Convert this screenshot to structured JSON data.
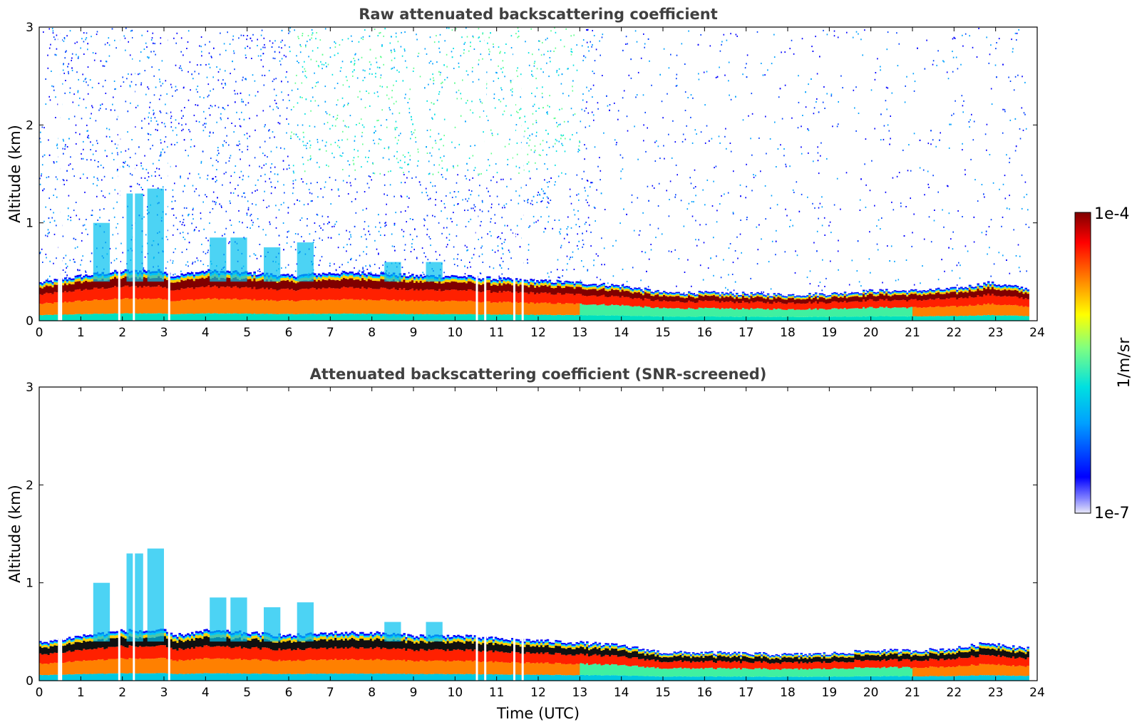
{
  "chart_data": [
    {
      "type": "heatmap",
      "title": "Raw attenuated backscattering coefficient",
      "xlabel": "",
      "ylabel": "Altitude (km)",
      "xlim": [
        0,
        24
      ],
      "ylim": [
        0,
        3
      ],
      "xticks": [
        "0",
        "1",
        "2",
        "3",
        "4",
        "5",
        "6",
        "7",
        "8",
        "9",
        "10",
        "11",
        "12",
        "13",
        "14",
        "15",
        "16",
        "17",
        "18",
        "19",
        "20",
        "21",
        "22",
        "23",
        "24"
      ],
      "yticks": [
        "0",
        "1",
        "2",
        "3"
      ],
      "screened": false,
      "boundary_layer_top_km": [
        [
          0,
          0.38
        ],
        [
          1,
          0.45
        ],
        [
          2,
          0.5
        ],
        [
          3,
          0.5
        ],
        [
          3.2,
          0.45
        ],
        [
          4,
          0.5
        ],
        [
          5,
          0.48
        ],
        [
          6,
          0.45
        ],
        [
          7,
          0.48
        ],
        [
          8,
          0.48
        ],
        [
          9,
          0.45
        ],
        [
          10,
          0.45
        ],
        [
          11,
          0.42
        ],
        [
          12,
          0.4
        ],
        [
          13,
          0.38
        ],
        [
          14,
          0.35
        ],
        [
          15,
          0.28
        ],
        [
          16,
          0.28
        ],
        [
          17,
          0.27
        ],
        [
          18,
          0.26
        ],
        [
          19,
          0.27
        ],
        [
          20,
          0.3
        ],
        [
          21,
          0.3
        ],
        [
          22,
          0.32
        ],
        [
          22.8,
          0.38
        ],
        [
          23.8,
          0.32
        ]
      ]
    },
    {
      "type": "heatmap",
      "title": "Attenuated backscattering coefficient (SNR-screened)",
      "xlabel": "Time (UTC)",
      "ylabel": "Altitude (km)",
      "xlim": [
        0,
        24
      ],
      "ylim": [
        0,
        3
      ],
      "xticks": [
        "0",
        "1",
        "2",
        "3",
        "4",
        "5",
        "6",
        "7",
        "8",
        "9",
        "10",
        "11",
        "12",
        "13",
        "14",
        "15",
        "16",
        "17",
        "18",
        "19",
        "20",
        "21",
        "22",
        "23",
        "24"
      ],
      "yticks": [
        "0",
        "1",
        "2",
        "3"
      ],
      "screened": true,
      "boundary_layer_top_km": [
        [
          0,
          0.38
        ],
        [
          1,
          0.45
        ],
        [
          2,
          0.5
        ],
        [
          3,
          0.5
        ],
        [
          3.2,
          0.45
        ],
        [
          4,
          0.5
        ],
        [
          5,
          0.48
        ],
        [
          6,
          0.45
        ],
        [
          7,
          0.48
        ],
        [
          8,
          0.48
        ],
        [
          9,
          0.45
        ],
        [
          10,
          0.45
        ],
        [
          11,
          0.42
        ],
        [
          12,
          0.4
        ],
        [
          13,
          0.38
        ],
        [
          14,
          0.35
        ],
        [
          15,
          0.28
        ],
        [
          16,
          0.28
        ],
        [
          17,
          0.27
        ],
        [
          18,
          0.26
        ],
        [
          19,
          0.27
        ],
        [
          20,
          0.3
        ],
        [
          21,
          0.3
        ],
        [
          22,
          0.32
        ],
        [
          22.8,
          0.38
        ],
        [
          23.8,
          0.32
        ]
      ]
    }
  ],
  "colorbar": {
    "label": "1/m/sr",
    "max_label": "1e-4",
    "min_label": "1e-7",
    "colormap": "jet",
    "scale": "log",
    "colors": [
      "#e8e8f8",
      "#0000ff",
      "#00a0ff",
      "#00e0e0",
      "#80ff80",
      "#ffff00",
      "#ff8000",
      "#ff0000",
      "#800000"
    ]
  }
}
